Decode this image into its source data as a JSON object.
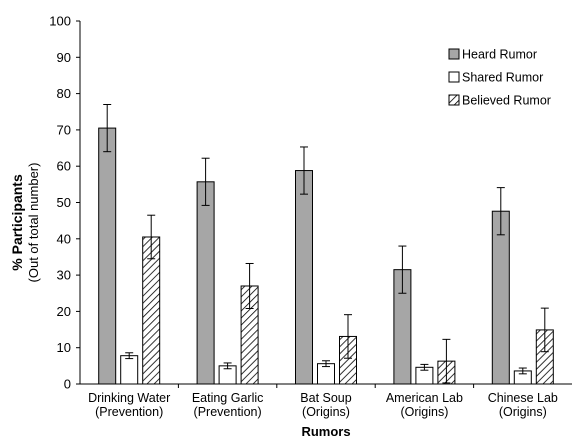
{
  "chart_data": {
    "type": "bar",
    "categories": [
      [
        "Drinking Water",
        "(Prevention)"
      ],
      [
        "Eating Garlic",
        "(Prevention)"
      ],
      [
        "Bat Soup",
        "(Origins)"
      ],
      [
        "American Lab",
        "(Origins)"
      ],
      [
        "Chinese Lab",
        "(Origins)"
      ]
    ],
    "series": [
      {
        "name": "Heard Rumor",
        "values": [
          70.5,
          55.7,
          58.8,
          31.5,
          47.6
        ],
        "errors": [
          6.5,
          6.5,
          6.5,
          6.5,
          6.5
        ],
        "fill": "#a6a6a6",
        "pattern": "solid"
      },
      {
        "name": "Shared Rumor",
        "values": [
          7.8,
          5.0,
          5.6,
          4.6,
          3.6
        ],
        "errors": [
          0.8,
          0.8,
          0.8,
          0.8,
          0.8
        ],
        "fill": "#ffffff",
        "pattern": "solid"
      },
      {
        "name": "Believed Rumor",
        "values": [
          40.5,
          27.0,
          13.1,
          6.3,
          14.9
        ],
        "errors": [
          6.0,
          6.2,
          6.0,
          6.0,
          6.0
        ],
        "fill": "#ffffff",
        "pattern": "hatch"
      }
    ],
    "xlabel": "Rumors",
    "ylabel": "% Participants",
    "ylabel_sub": "(Out of total number)",
    "ylim": [
      0,
      100
    ],
    "yticks": [
      0,
      10,
      20,
      30,
      40,
      50,
      60,
      70,
      80,
      90,
      100
    ],
    "grid": false,
    "legend_position": "top-right"
  }
}
